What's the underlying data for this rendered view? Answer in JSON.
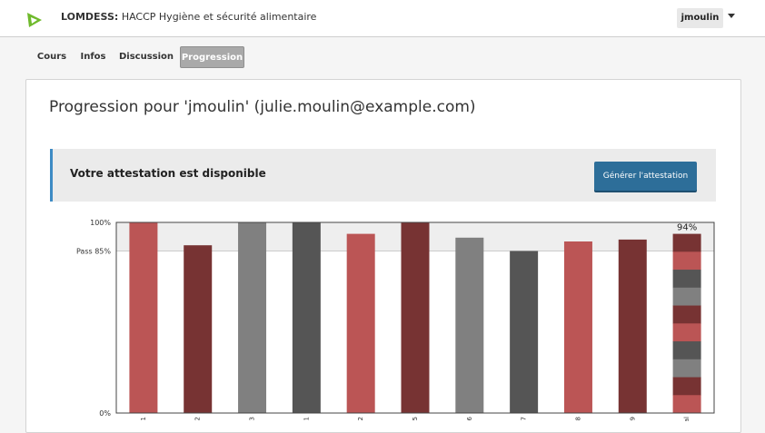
{
  "header": {
    "org": "LOMDESS:",
    "course": "HACCP Hygiène et sécurité alimentaire",
    "username": "jmoulin",
    "logo_icon": "edx-logo-icon"
  },
  "tabs": [
    {
      "label": "Cours",
      "active": false
    },
    {
      "label": "Infos",
      "active": false
    },
    {
      "label": "Discussion",
      "active": false
    },
    {
      "label": "Progression",
      "active": true
    }
  ],
  "main": {
    "title": "Progression pour 'jmoulin' (julie.moulin@example.com)",
    "certificate_text": "Votre attestation est disponible",
    "certificate_button": "Générer l'attestation"
  },
  "colors": {
    "accent_blue": "#2d6e99",
    "bar_red": "#bb5555",
    "bar_darkred": "#773333",
    "bar_gray": "#808080",
    "bar_darkgray": "#555555"
  },
  "chart_data": {
    "type": "bar",
    "y_ticks": [
      "100%",
      "Pass 85%",
      "0%"
    ],
    "ylim": [
      0,
      100
    ],
    "pass_threshold": 85,
    "categories": [
      "1",
      "2",
      "3",
      "e 1",
      "e 2",
      "5",
      "6",
      "7",
      "8",
      "9",
      "al"
    ],
    "values": [
      100,
      88,
      100,
      100,
      94,
      100,
      92,
      85,
      90,
      91,
      94
    ],
    "bar_colors": [
      "#bb5555",
      "#773333",
      "#808080",
      "#555555",
      "#bb5555",
      "#773333",
      "#808080",
      "#555555",
      "#bb5555",
      "#773333",
      "stacked"
    ],
    "total_label": "94%",
    "total_segments": [
      "#773333",
      "#bb5555",
      "#555555",
      "#808080",
      "#773333",
      "#bb5555",
      "#555555",
      "#808080",
      "#773333",
      "#bb5555"
    ]
  }
}
